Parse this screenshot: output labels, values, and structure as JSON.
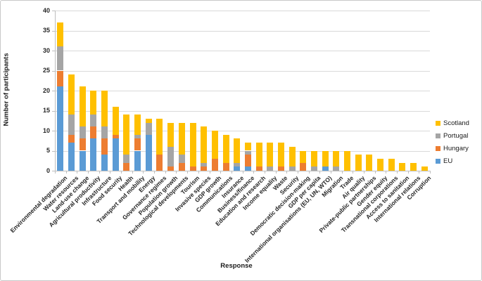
{
  "figure": {
    "y_axis_title": "Number of participants",
    "x_axis_title": "Response"
  },
  "colors": {
    "scotland": "#FFC000",
    "portugal": "#A5A5A5",
    "hungary": "#ED7D31",
    "eu": "#5B9BD5",
    "gridline": "#D9D9D9",
    "axis": "#BFBFBF",
    "text": "#262626"
  },
  "chart_data": {
    "type": "bar",
    "stacked": true,
    "title": "",
    "xlabel": "Response",
    "ylabel": "Number of participants",
    "ylim": [
      0,
      40
    ],
    "yticks": [
      0,
      5,
      10,
      15,
      20,
      25,
      30,
      35,
      40
    ],
    "grid": true,
    "legend_position": "right",
    "legend_order": [
      "Scotland",
      "Portugal",
      "Hungary",
      "EU"
    ],
    "categories": [
      "Environmental degradation",
      "Water resources",
      "Land-use change",
      "Agricultural productivity",
      "Infrastructure",
      "Food security",
      "Health",
      "Transport and mobility",
      "Energy",
      "Governance regimes",
      "Population growth",
      "Technological developments",
      "Tourism",
      "Invasive species",
      "GDP growth",
      "Communications",
      "Insurance",
      "Business/finance",
      "Education and research",
      "Income equality",
      "Waste",
      "Security",
      "Democratic decision-making",
      "GDP per capita",
      "International organisations (EU, UN, WTO)",
      "Migration",
      "Trade",
      "Air quality",
      "Private-public partnerships",
      "Gender equity",
      "Transnational corporations",
      "Access to sanitation",
      "International relations",
      "Corruption"
    ],
    "series": [
      {
        "name": "EU",
        "color": "#5B9BD5",
        "values": [
          21,
          7,
          5,
          8,
          4,
          8,
          0,
          5,
          9,
          0,
          0,
          0,
          0,
          0,
          0,
          0,
          1,
          1,
          0,
          0,
          0,
          0,
          0,
          0,
          1,
          0,
          0,
          0,
          0,
          0,
          0,
          0,
          0,
          0
        ]
      },
      {
        "name": "Hungary",
        "color": "#ED7D31",
        "values": [
          4,
          2,
          3,
          3,
          4,
          1,
          2,
          3,
          0,
          4,
          1,
          2,
          1,
          1,
          3,
          2,
          0,
          3,
          1,
          0,
          1,
          0,
          2,
          0,
          0,
          0,
          0,
          0,
          0,
          0,
          0,
          0,
          0,
          0
        ]
      },
      {
        "name": "Portugal",
        "color": "#A5A5A5",
        "values": [
          6,
          5,
          3,
          3,
          3,
          0,
          2,
          1,
          3,
          0,
          5,
          2,
          0,
          1,
          0,
          0,
          1,
          1,
          0,
          1,
          0,
          1,
          0,
          1,
          0,
          1,
          0,
          0,
          0,
          0,
          0,
          0,
          0,
          0
        ]
      },
      {
        "name": "Scotland",
        "color": "#FFC000",
        "values": [
          6,
          10,
          10,
          6,
          9,
          7,
          10,
          5,
          1,
          9,
          6,
          8,
          11,
          9,
          7,
          7,
          6,
          2,
          6,
          6,
          6,
          5,
          3,
          4,
          4,
          4,
          5,
          4,
          4,
          3,
          3,
          2,
          2,
          1
        ]
      }
    ],
    "totals": [
      37,
      24,
      21,
      20,
      20,
      16,
      14,
      14,
      13,
      13,
      12,
      12,
      12,
      11,
      10,
      9,
      8,
      7,
      7,
      7,
      7,
      6,
      5,
      5,
      5,
      5,
      5,
      4,
      4,
      3,
      3,
      2,
      2,
      1
    ]
  }
}
